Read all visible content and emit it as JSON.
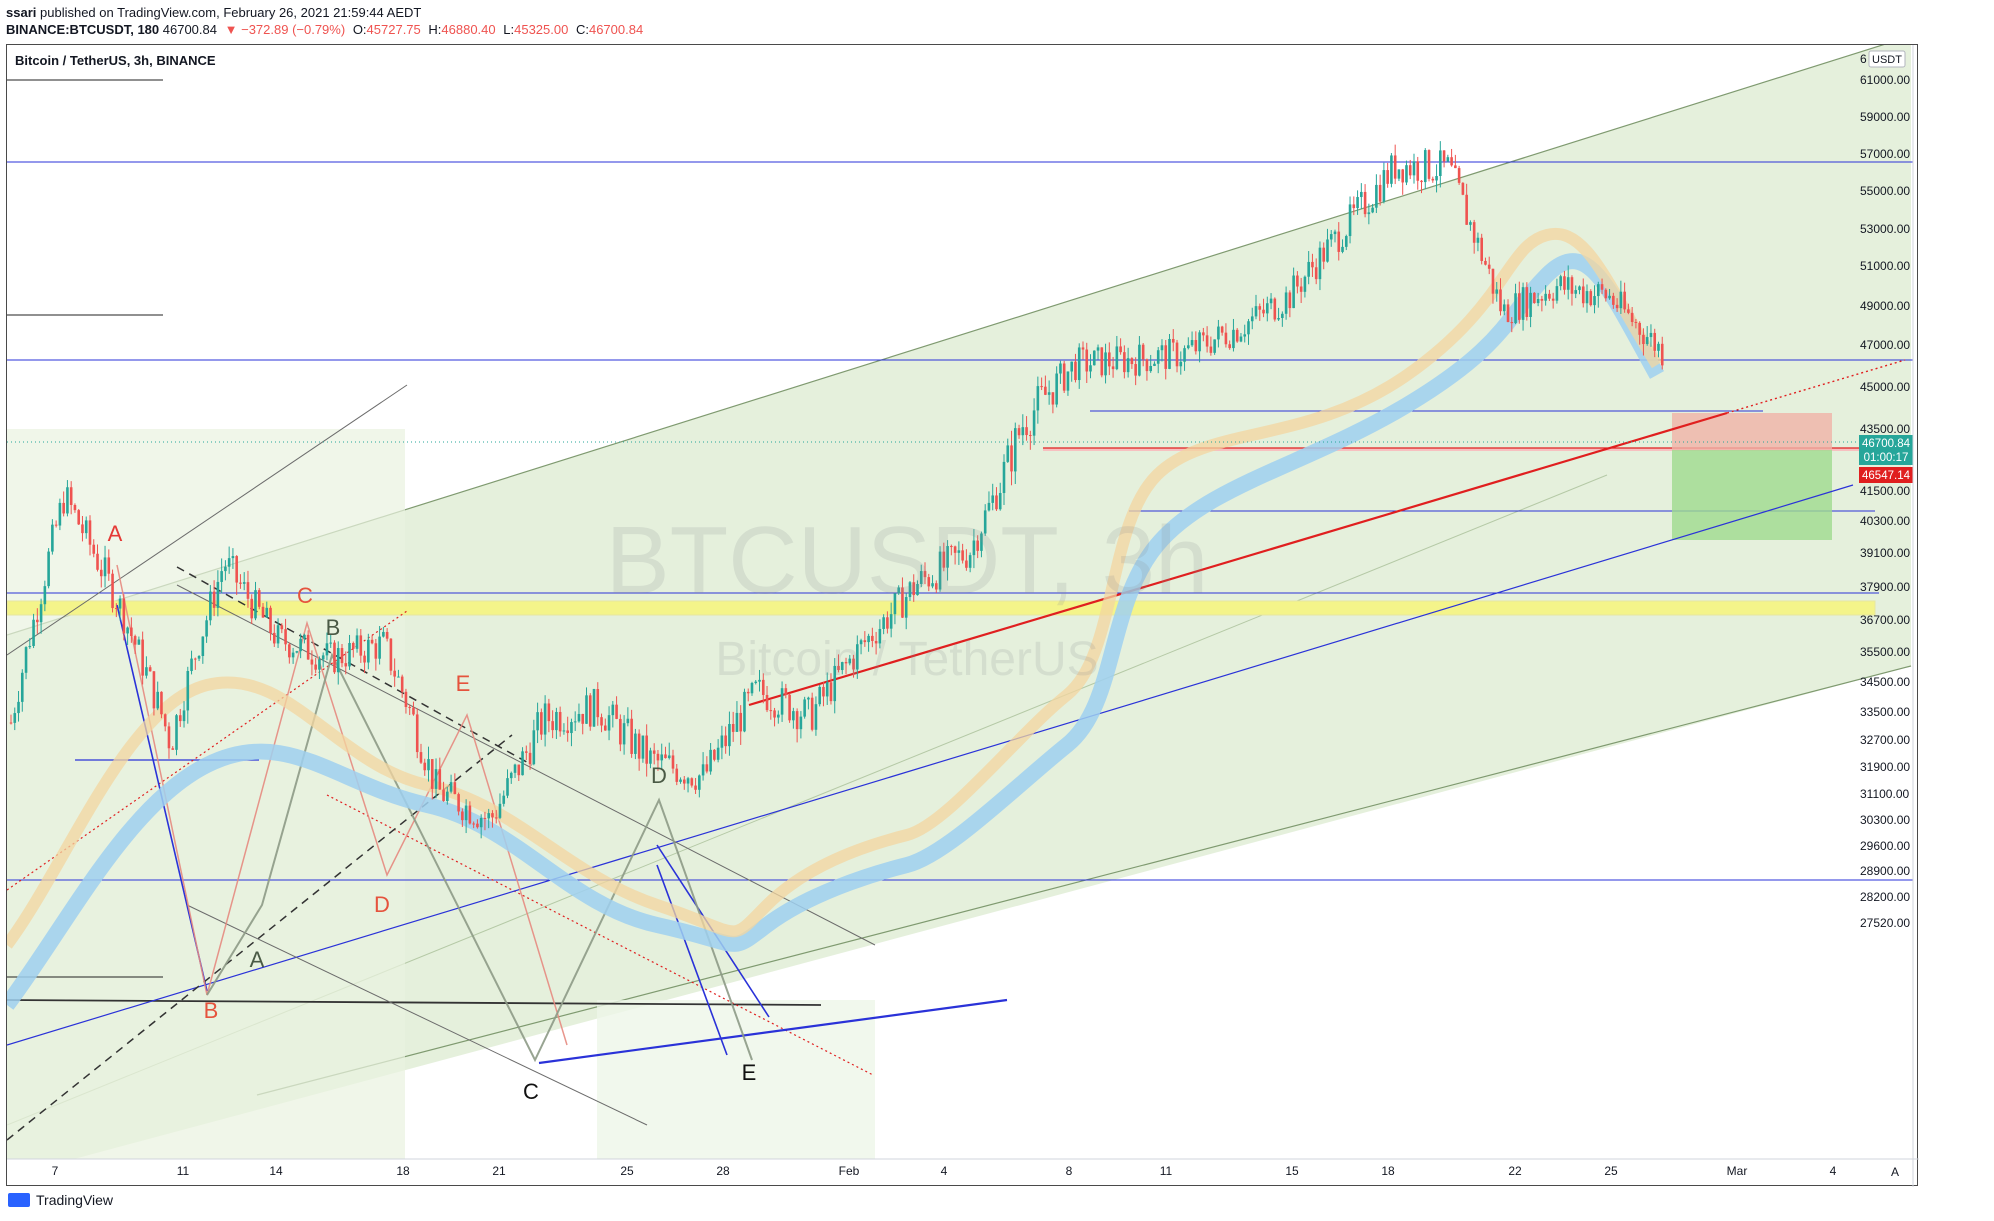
{
  "header": {
    "publisher_user": "ssari",
    "publisher_text": "published on TradingView.com, February 26, 2021 21:59:44 AEDT",
    "symbol": "BINANCE:BTCUSDT, 180",
    "last": "46700.84",
    "change": "▼ −372.89 (−0.79%)",
    "o_label": "O:",
    "o": "45727.75",
    "h_label": "H:",
    "h": "46880.40",
    "l_label": "L:",
    "l": "45325.00",
    "c_label": "C:",
    "c": "46700.84"
  },
  "legend_title": "Bitcoin / TetherUS, 3h, BINANCE",
  "watermark": {
    "line1": "BTCUSDT, 3h",
    "line2": "Bitcoin / TetherUS"
  },
  "footer": {
    "brand": "TradingView"
  },
  "price_axis": {
    "currency": "USDT",
    "top_partial": "6",
    "labels": [
      "61000.00",
      "59000.00",
      "57000.00",
      "55000.00",
      "53000.00",
      "51000.00",
      "49000.00",
      "47000.00",
      "45000.00",
      "43500.00",
      "42500.00",
      "41500.00",
      "40300.00",
      "39100.00",
      "37900.00",
      "36700.00",
      "35500.00",
      "34500.00",
      "33500.00",
      "32700.00",
      "31900.00",
      "31100.00",
      "30300.00",
      "29600.00",
      "28900.00",
      "28200.00",
      "27520.00"
    ],
    "last_price_badge": "46700.84",
    "countdown_badge": "01:00:17",
    "level_badge": "46547.14"
  },
  "time_axis": {
    "labels": [
      "7",
      "11",
      "14",
      "18",
      "21",
      "25",
      "28",
      "Feb",
      "4",
      "8",
      "11",
      "15",
      "18",
      "22",
      "25",
      "Mar",
      "4"
    ],
    "auto_label": "A"
  },
  "annotations": {
    "red": [
      "A",
      "B",
      "C",
      "D",
      "E"
    ],
    "green": [
      "B",
      "A",
      "D"
    ],
    "black": [
      "C",
      "E"
    ]
  },
  "colors": {
    "up": "#26a69a",
    "down": "#ef5350",
    "channel": "#dcebd0",
    "blue_line": "#2a32d8",
    "red_line": "#e01f1f",
    "yellow_zone": "#f4f48a",
    "ema_band": "#9fd0f0",
    "orange_band": "#f3d6a0"
  },
  "chart_data": {
    "type": "candlestick",
    "x": [
      "Jan 7",
      "Jan 9",
      "Jan 11",
      "Jan 12",
      "Jan 14",
      "Jan 16",
      "Jan 18",
      "Jan 20",
      "Jan 21",
      "Jan 22",
      "Jan 24",
      "Jan 25",
      "Jan 27",
      "Jan 28",
      "Jan 29",
      "Feb 1",
      "Feb 3",
      "Feb 5",
      "Feb 7",
      "Feb 8",
      "Feb 9",
      "Feb 11",
      "Feb 13",
      "Feb 15",
      "Feb 17",
      "Feb 19",
      "Feb 21",
      "Feb 22",
      "Feb 23",
      "Feb 24",
      "Feb 25",
      "Feb 26"
    ],
    "close": [
      33200,
      41300,
      37400,
      32600,
      38800,
      36000,
      35300,
      35800,
      31200,
      30300,
      33300,
      33700,
      32100,
      31600,
      34200,
      33400,
      35800,
      38000,
      39200,
      43700,
      46100,
      46300,
      46600,
      47800,
      49500,
      52900,
      56400,
      56200,
      48700,
      50000,
      49500,
      46700
    ],
    "ylim": [
      27000,
      62000
    ]
  }
}
